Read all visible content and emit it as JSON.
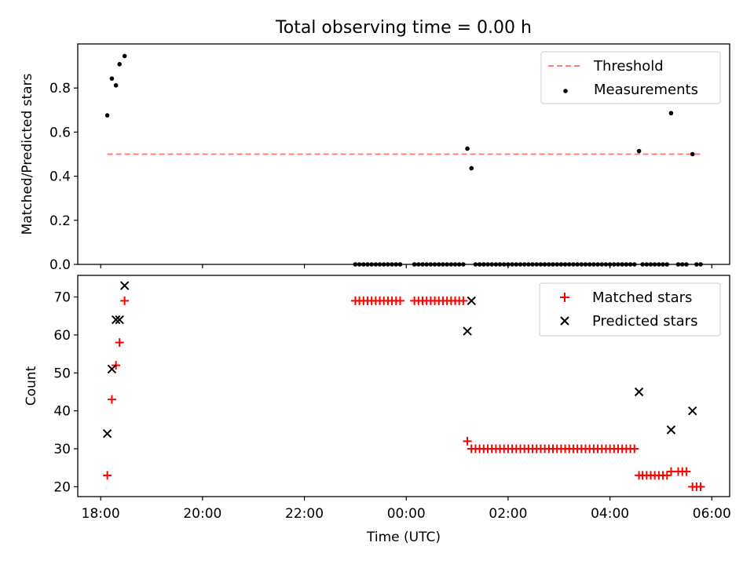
{
  "chart_data": [
    {
      "type": "scatter",
      "title": "Total observing time = 0.00 h",
      "ylabel": "Matched/Predicted stars",
      "xlabel": "",
      "ylim": [
        0,
        1.0
      ],
      "yticks": [
        "0.0",
        "0.2",
        "0.4",
        "0.6",
        "0.8"
      ],
      "ytick_values": [
        0,
        0.2,
        0.4,
        0.6,
        0.8
      ],
      "legend_position": "top-right",
      "grid": false,
      "threshold": {
        "name": "Threshold",
        "value": 0.5,
        "x_start": 18.13,
        "x_end": 29.77,
        "color": "#ff7f7f"
      },
      "series": [
        {
          "name": "Measurements",
          "color": "#000000",
          "points": [
            [
              18.13,
              0.676
            ],
            [
              18.22,
              0.843
            ],
            [
              18.3,
              0.812
            ],
            [
              18.37,
              0.908
            ],
            [
              18.47,
              0.945
            ],
            [
              23.0,
              0
            ],
            [
              23.08,
              0
            ],
            [
              23.16,
              0
            ],
            [
              23.24,
              0
            ],
            [
              23.32,
              0
            ],
            [
              23.4,
              0
            ],
            [
              23.48,
              0
            ],
            [
              23.56,
              0
            ],
            [
              23.64,
              0
            ],
            [
              23.72,
              0
            ],
            [
              23.8,
              0
            ],
            [
              23.88,
              0
            ],
            [
              24.16,
              0
            ],
            [
              24.24,
              0
            ],
            [
              24.32,
              0
            ],
            [
              24.4,
              0
            ],
            [
              24.48,
              0
            ],
            [
              24.56,
              0
            ],
            [
              24.64,
              0
            ],
            [
              24.72,
              0
            ],
            [
              24.8,
              0
            ],
            [
              24.88,
              0
            ],
            [
              24.96,
              0
            ],
            [
              25.04,
              0
            ],
            [
              25.12,
              0
            ],
            [
              25.2,
              0.525
            ],
            [
              25.28,
              0.436
            ],
            [
              25.36,
              0
            ],
            [
              25.44,
              0
            ],
            [
              25.52,
              0
            ],
            [
              25.6,
              0
            ],
            [
              25.68,
              0
            ],
            [
              25.76,
              0
            ],
            [
              25.84,
              0
            ],
            [
              25.92,
              0
            ],
            [
              26.0,
              0
            ],
            [
              26.08,
              0
            ],
            [
              26.16,
              0
            ],
            [
              26.24,
              0
            ],
            [
              26.32,
              0
            ],
            [
              26.4,
              0
            ],
            [
              26.48,
              0
            ],
            [
              26.56,
              0
            ],
            [
              26.64,
              0
            ],
            [
              26.72,
              0
            ],
            [
              26.8,
              0
            ],
            [
              26.88,
              0
            ],
            [
              26.96,
              0
            ],
            [
              27.04,
              0
            ],
            [
              27.12,
              0
            ],
            [
              27.2,
              0
            ],
            [
              27.28,
              0
            ],
            [
              27.36,
              0
            ],
            [
              27.44,
              0
            ],
            [
              27.52,
              0
            ],
            [
              27.6,
              0
            ],
            [
              27.68,
              0
            ],
            [
              27.76,
              0
            ],
            [
              27.84,
              0
            ],
            [
              27.92,
              0
            ],
            [
              28.0,
              0
            ],
            [
              28.08,
              0
            ],
            [
              28.16,
              0
            ],
            [
              28.24,
              0
            ],
            [
              28.32,
              0
            ],
            [
              28.4,
              0
            ],
            [
              28.48,
              0
            ],
            [
              28.57,
              0.514
            ],
            [
              28.64,
              0
            ],
            [
              28.72,
              0
            ],
            [
              28.8,
              0
            ],
            [
              28.88,
              0
            ],
            [
              28.96,
              0
            ],
            [
              29.04,
              0
            ],
            [
              29.12,
              0
            ],
            [
              29.2,
              0.686
            ],
            [
              29.34,
              0
            ],
            [
              29.42,
              0
            ],
            [
              29.5,
              0
            ],
            [
              29.62,
              0.5
            ],
            [
              29.7,
              0
            ],
            [
              29.78,
              0
            ]
          ]
        }
      ]
    },
    {
      "type": "scatter",
      "title": "",
      "ylabel": "Count",
      "xlabel": "Time (UTC)",
      "xlim": [
        17.55,
        30.35
      ],
      "xticks": [
        "18:00",
        "20:00",
        "22:00",
        "00:00",
        "02:00",
        "04:00",
        "06:00"
      ],
      "xtick_values": [
        18,
        20,
        22,
        24,
        26,
        28,
        30
      ],
      "ylim": [
        17.4,
        75.7
      ],
      "yticks": [
        "20",
        "30",
        "40",
        "50",
        "60",
        "70"
      ],
      "ytick_values": [
        20,
        30,
        40,
        50,
        60,
        70
      ],
      "legend_position": "top-right",
      "grid": false,
      "series": [
        {
          "name": "Matched stars",
          "marker": "+",
          "color": "#ff0000",
          "points": [
            [
              18.13,
              23
            ],
            [
              18.22,
              43
            ],
            [
              18.3,
              52
            ],
            [
              18.37,
              58
            ],
            [
              18.47,
              69
            ],
            [
              23.0,
              69
            ],
            [
              23.08,
              69
            ],
            [
              23.16,
              69
            ],
            [
              23.24,
              69
            ],
            [
              23.32,
              69
            ],
            [
              23.4,
              69
            ],
            [
              23.48,
              69
            ],
            [
              23.56,
              69
            ],
            [
              23.64,
              69
            ],
            [
              23.72,
              69
            ],
            [
              23.8,
              69
            ],
            [
              23.88,
              69
            ],
            [
              24.16,
              69
            ],
            [
              24.24,
              69
            ],
            [
              24.32,
              69
            ],
            [
              24.4,
              69
            ],
            [
              24.48,
              69
            ],
            [
              24.56,
              69
            ],
            [
              24.64,
              69
            ],
            [
              24.72,
              69
            ],
            [
              24.8,
              69
            ],
            [
              24.88,
              69
            ],
            [
              24.96,
              69
            ],
            [
              25.04,
              69
            ],
            [
              25.12,
              69
            ],
            [
              25.2,
              32
            ],
            [
              25.28,
              30
            ],
            [
              25.36,
              30
            ],
            [
              25.44,
              30
            ],
            [
              25.52,
              30
            ],
            [
              25.6,
              30
            ],
            [
              25.68,
              30
            ],
            [
              25.76,
              30
            ],
            [
              25.84,
              30
            ],
            [
              25.92,
              30
            ],
            [
              26.0,
              30
            ],
            [
              26.08,
              30
            ],
            [
              26.16,
              30
            ],
            [
              26.24,
              30
            ],
            [
              26.32,
              30
            ],
            [
              26.4,
              30
            ],
            [
              26.48,
              30
            ],
            [
              26.56,
              30
            ],
            [
              26.64,
              30
            ],
            [
              26.72,
              30
            ],
            [
              26.8,
              30
            ],
            [
              26.88,
              30
            ],
            [
              26.96,
              30
            ],
            [
              27.04,
              30
            ],
            [
              27.12,
              30
            ],
            [
              27.2,
              30
            ],
            [
              27.28,
              30
            ],
            [
              27.36,
              30
            ],
            [
              27.44,
              30
            ],
            [
              27.52,
              30
            ],
            [
              27.6,
              30
            ],
            [
              27.68,
              30
            ],
            [
              27.76,
              30
            ],
            [
              27.84,
              30
            ],
            [
              27.92,
              30
            ],
            [
              28.0,
              30
            ],
            [
              28.08,
              30
            ],
            [
              28.16,
              30
            ],
            [
              28.24,
              30
            ],
            [
              28.32,
              30
            ],
            [
              28.4,
              30
            ],
            [
              28.48,
              30
            ],
            [
              28.57,
              23
            ],
            [
              28.64,
              23
            ],
            [
              28.72,
              23
            ],
            [
              28.8,
              23
            ],
            [
              28.88,
              23
            ],
            [
              28.96,
              23
            ],
            [
              29.04,
              23
            ],
            [
              29.12,
              23
            ],
            [
              29.2,
              24
            ],
            [
              29.34,
              24
            ],
            [
              29.42,
              24
            ],
            [
              29.5,
              24
            ],
            [
              29.62,
              20
            ],
            [
              29.7,
              20
            ],
            [
              29.78,
              20
            ]
          ]
        },
        {
          "name": "Predicted stars",
          "marker": "x",
          "color": "#000000",
          "points": [
            [
              18.13,
              34
            ],
            [
              18.22,
              51
            ],
            [
              18.3,
              64
            ],
            [
              18.37,
              64
            ],
            [
              18.47,
              73
            ],
            [
              25.2,
              61
            ],
            [
              25.28,
              69
            ],
            [
              28.57,
              45
            ],
            [
              29.2,
              35
            ],
            [
              29.62,
              40
            ]
          ]
        }
      ]
    }
  ]
}
